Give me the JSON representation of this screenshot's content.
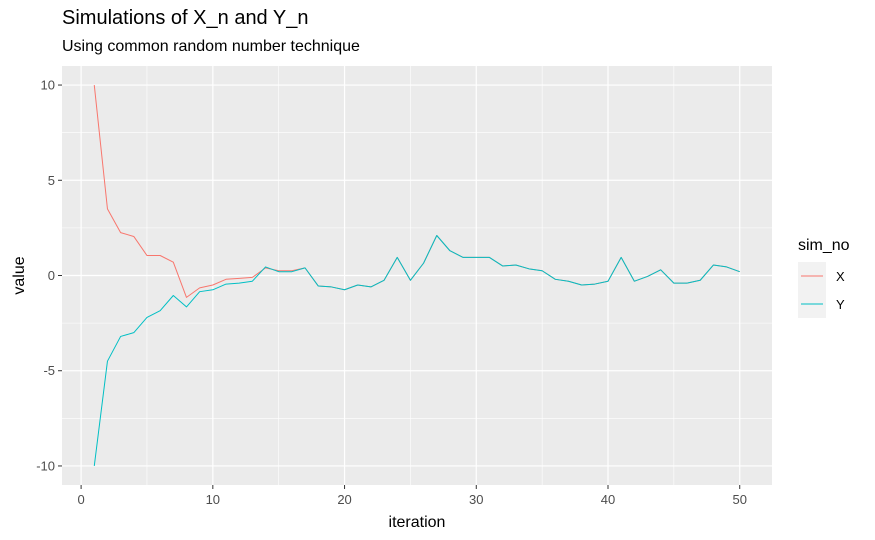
{
  "chart_data": {
    "type": "line",
    "title": "Simulations of X_n and Y_n",
    "subtitle": "Using common random number technique",
    "xlabel": "iteration",
    "ylabel": "value",
    "xlim": [
      0,
      50
    ],
    "ylim": [
      -10,
      10
    ],
    "x_ticks": [
      0,
      10,
      20,
      30,
      40,
      50
    ],
    "y_ticks": [
      10,
      5,
      0,
      -5,
      -10
    ],
    "grid": true,
    "legend": {
      "title": "sim_no",
      "placement": "right"
    },
    "x": [
      1,
      2,
      3,
      4,
      5,
      6,
      7,
      8,
      9,
      10,
      11,
      12,
      13,
      14,
      15,
      16,
      17,
      18,
      19,
      20,
      21,
      22,
      23,
      24,
      25,
      26,
      27,
      28,
      29,
      30,
      31,
      32,
      33,
      34,
      35,
      36,
      37,
      38,
      39,
      40,
      41,
      42,
      43,
      44,
      45,
      46,
      47,
      48,
      49,
      50
    ],
    "series": [
      {
        "name": "X",
        "color": "#F8766D",
        "values": [
          10,
          3.5,
          2.25,
          2.05,
          1.05,
          1.05,
          0.7,
          -1.15,
          -0.65,
          -0.5,
          -0.2,
          -0.15,
          -0.1,
          0.4,
          0.25,
          0.25,
          0.4,
          -0.55,
          -0.6,
          -0.75,
          -0.5,
          -0.6,
          -0.25,
          0.95,
          -0.25,
          0.65,
          2.1,
          1.3,
          0.95,
          0.95,
          0.95,
          0.5,
          0.55,
          0.35,
          0.25,
          -0.2,
          -0.3,
          -0.5,
          -0.45,
          -0.3,
          0.95,
          -0.3,
          -0.05,
          0.3,
          -0.4,
          -0.4,
          -0.25,
          0.55,
          0.45,
          0.2
        ]
      },
      {
        "name": "Y",
        "color": "#00BFC4",
        "values": [
          -10,
          -4.5,
          -3.2,
          -3,
          -2.2,
          -1.85,
          -1.05,
          -1.65,
          -0.85,
          -0.75,
          -0.45,
          -0.4,
          -0.3,
          0.45,
          0.2,
          0.2,
          0.4,
          -0.55,
          -0.6,
          -0.75,
          -0.5,
          -0.6,
          -0.25,
          0.95,
          -0.25,
          0.65,
          2.1,
          1.3,
          0.95,
          0.95,
          0.95,
          0.5,
          0.55,
          0.35,
          0.25,
          -0.2,
          -0.3,
          -0.5,
          -0.45,
          -0.3,
          0.95,
          -0.3,
          -0.05,
          0.3,
          -0.4,
          -0.4,
          -0.25,
          0.55,
          0.45,
          0.2
        ]
      }
    ]
  }
}
